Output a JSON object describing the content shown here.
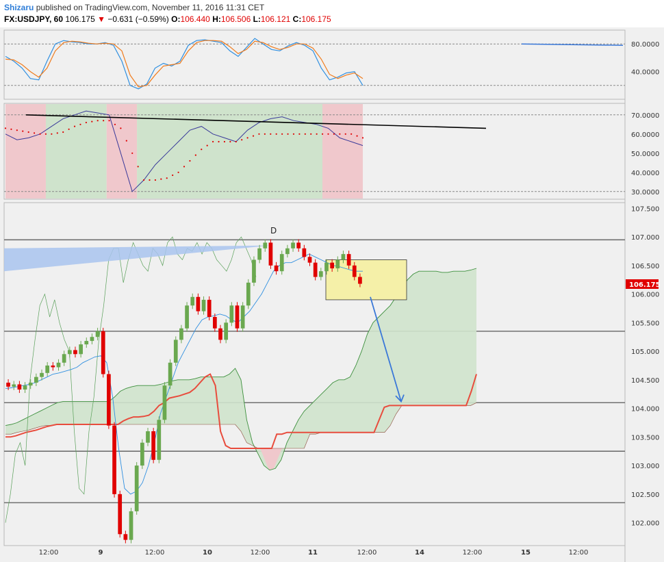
{
  "header": {
    "author": "Shizaru",
    "published": "published on TradingView.com, November 11, 2016 11:31 CET",
    "symbol": "FX:USDJPY, 60",
    "last": "106.175",
    "change": "−0.631 (−0.59%)",
    "o_label": "O:",
    "o": "106.440",
    "h_label": "H:",
    "h": "106.506",
    "l_label": "L:",
    "l": "106.121",
    "c_label": "C:",
    "c": "106.175"
  },
  "colors": {
    "up": "#6aa84f",
    "down": "#e00000",
    "kijun": "#e84c3d",
    "tenkan": "#2f8fe0",
    "stoch_k": "#2f8fe0",
    "stoch_d": "#f07a1a",
    "rsi": "#3a3a9a",
    "psar": "#e00000",
    "cloud": "#cfe3cc",
    "cloud_red": "#f0c8cc",
    "box": "#f5f0a8",
    "arrow": "#3a78d8",
    "price_tag": "#e00000"
  },
  "chart_data": [
    {
      "name": "Stochastic",
      "type": "line",
      "yticks": [
        "80.0000",
        "40.0000"
      ],
      "ylim": [
        0,
        100
      ],
      "guides": [
        80,
        20
      ],
      "series": [
        {
          "key": "k",
          "values": [
            62,
            55,
            45,
            30,
            28,
            55,
            80,
            85,
            83,
            82,
            80,
            80,
            82,
            78,
            55,
            20,
            15,
            22,
            45,
            52,
            48,
            55,
            78,
            85,
            86,
            84,
            82,
            70,
            62,
            75,
            88,
            80,
            72,
            70,
            77,
            82,
            78,
            70,
            45,
            28,
            32,
            38,
            40,
            20
          ]
        },
        {
          "key": "d",
          "values": [
            58,
            57,
            50,
            40,
            32,
            45,
            70,
            82,
            84,
            83,
            81,
            80,
            81,
            80,
            70,
            35,
            18,
            20,
            35,
            48,
            50,
            52,
            70,
            82,
            85,
            85,
            84,
            76,
            66,
            72,
            84,
            82,
            76,
            72,
            75,
            80,
            80,
            74,
            58,
            36,
            30,
            35,
            38,
            30
          ]
        }
      ],
      "trendline": [
        [
          0.0,
          80
        ],
        [
          1.0,
          78
        ]
      ]
    },
    {
      "name": "RSI with Parabolic SAR",
      "type": "line",
      "yticks": [
        "70.0000",
        "60.0000",
        "50.0000",
        "40.0000",
        "30.0000"
      ],
      "ylim": [
        26,
        76
      ],
      "guides": [
        70,
        30
      ],
      "rsi": [
        60,
        57,
        58,
        60,
        64,
        68,
        70,
        72,
        71,
        70,
        50,
        30,
        36,
        44,
        50,
        56,
        62,
        64,
        60,
        58,
        56,
        62,
        66,
        68,
        69,
        67,
        66,
        65,
        63,
        58,
        56,
        54
      ],
      "psar": [
        63,
        62,
        61,
        60,
        60,
        61,
        64,
        66,
        67,
        67,
        63,
        50,
        36,
        36,
        37,
        40,
        46,
        52,
        56,
        56,
        56,
        58,
        60,
        60,
        60,
        60,
        60,
        60,
        60,
        60,
        60,
        58
      ],
      "zones": [
        {
          "from": 0.0,
          "to": 0.113,
          "color": "red"
        },
        {
          "from": 0.113,
          "to": 0.283,
          "color": "green"
        },
        {
          "from": 0.283,
          "to": 0.368,
          "color": "red"
        },
        {
          "from": 0.368,
          "to": 0.887,
          "color": "green"
        },
        {
          "from": 0.887,
          "to": 1.0,
          "color": "red"
        }
      ],
      "trendline": [
        [
          70,
          38
        ],
        [
          63,
          48
        ]
      ]
    },
    {
      "name": "FX:USDJPY 60",
      "type": "candlestick",
      "ylim": [
        101.6,
        107.6
      ],
      "yticks": [
        "107.500",
        "107.000",
        "106.500",
        "106.000",
        "105.500",
        "105.000",
        "104.500",
        "104.000",
        "103.500",
        "103.000",
        "102.500",
        "102.000"
      ],
      "current_price": "106.175",
      "horizontal_levels": [
        106.95,
        105.35,
        104.1,
        103.25,
        102.35
      ],
      "xticks": [
        "12:00",
        "9",
        "12:00",
        "10",
        "12:00",
        "11",
        "12:00",
        "14",
        "12:00",
        "15",
        "12:00"
      ],
      "annotations": [
        "D"
      ],
      "candles": [
        [
          104.45,
          104.38
        ],
        [
          104.38,
          104.42
        ],
        [
          104.42,
          104.33
        ],
        [
          104.33,
          104.4
        ],
        [
          104.4,
          104.45
        ],
        [
          104.45,
          104.55
        ],
        [
          104.55,
          104.62
        ],
        [
          104.62,
          104.75
        ],
        [
          104.75,
          104.72
        ],
        [
          104.72,
          104.8
        ],
        [
          104.8,
          104.95
        ],
        [
          104.95,
          105.02
        ],
        [
          105.02,
          104.95
        ],
        [
          104.95,
          105.12
        ],
        [
          105.12,
          105.18
        ],
        [
          105.18,
          105.25
        ],
        [
          105.25,
          105.35
        ],
        [
          105.35,
          104.6
        ],
        [
          104.6,
          103.7
        ],
        [
          103.7,
          102.5
        ],
        [
          102.5,
          101.8
        ],
        [
          101.8,
          101.7
        ],
        [
          101.7,
          102.2
        ],
        [
          102.2,
          103.0
        ],
        [
          103.0,
          103.4
        ],
        [
          103.4,
          103.6
        ],
        [
          103.6,
          103.1
        ],
        [
          103.1,
          103.8
        ],
        [
          103.8,
          104.4
        ],
        [
          104.4,
          104.8
        ],
        [
          104.8,
          105.2
        ],
        [
          105.2,
          105.4
        ],
        [
          105.4,
          105.8
        ],
        [
          105.8,
          105.95
        ],
        [
          105.95,
          105.7
        ],
        [
          105.7,
          105.9
        ],
        [
          105.9,
          105.6
        ],
        [
          105.6,
          105.4
        ],
        [
          105.4,
          105.2
        ],
        [
          105.2,
          105.5
        ],
        [
          105.5,
          105.8
        ],
        [
          105.8,
          105.4
        ],
        [
          105.4,
          105.8
        ],
        [
          105.8,
          106.2
        ],
        [
          106.2,
          106.6
        ],
        [
          106.6,
          106.8
        ],
        [
          106.8,
          106.9
        ],
        [
          106.9,
          106.5
        ],
        [
          106.5,
          106.4
        ],
        [
          106.4,
          106.7
        ],
        [
          106.7,
          106.8
        ],
        [
          106.8,
          106.9
        ],
        [
          106.9,
          106.8
        ],
        [
          106.8,
          106.65
        ],
        [
          106.65,
          106.55
        ],
        [
          106.55,
          106.3
        ],
        [
          106.3,
          106.4
        ],
        [
          106.4,
          106.55
        ],
        [
          106.55,
          106.45
        ],
        [
          106.45,
          106.6
        ],
        [
          106.6,
          106.7
        ],
        [
          106.7,
          106.5
        ],
        [
          106.5,
          106.3
        ],
        [
          106.3,
          106.18
        ]
      ],
      "tenkan": [
        104.35,
        104.36,
        104.38,
        104.4,
        104.42,
        104.45,
        104.5,
        104.55,
        104.6,
        104.62,
        104.65,
        104.68,
        104.72,
        104.8,
        104.85,
        104.9,
        104.92,
        104.8,
        104.2,
        103.3,
        102.6,
        102.5,
        102.55,
        102.7,
        103.0,
        103.4,
        103.9,
        104.2,
        104.5,
        104.8,
        105.0,
        105.2,
        105.4,
        105.55,
        105.6,
        105.62,
        105.65,
        105.62,
        105.55,
        105.5,
        105.6,
        105.7,
        105.85,
        106.0,
        106.2,
        106.4,
        106.5,
        106.55,
        106.55,
        106.6,
        106.65,
        106.7,
        106.65,
        106.6,
        106.55,
        106.5,
        106.48,
        106.45,
        106.42,
        106.4,
        106.4
      ],
      "kijun": [
        103.5,
        103.5,
        103.52,
        103.55,
        103.58,
        103.6,
        103.62,
        103.65,
        103.68,
        103.7,
        103.72,
        103.72,
        103.72,
        103.72,
        103.72,
        103.72,
        103.72,
        103.72,
        103.72,
        103.72,
        103.72,
        103.72,
        103.72,
        103.78,
        103.82,
        103.85,
        103.85,
        103.86,
        103.88,
        103.95,
        104.05,
        104.1,
        104.18,
        104.2,
        104.22,
        104.25,
        104.28,
        104.35,
        104.45,
        104.55,
        104.6,
        104.4,
        103.6,
        103.35,
        103.3,
        103.3,
        103.3,
        103.3,
        103.3,
        103.3,
        103.3,
        103.3,
        103.3,
        103.55,
        103.55,
        103.58,
        103.58,
        103.58,
        103.58,
        103.58,
        103.58,
        103.58,
        103.58,
        103.58,
        103.58,
        103.58,
        103.58,
        103.58,
        103.58,
        103.58,
        103.58,
        103.58,
        103.58,
        103.8,
        104.02,
        104.05,
        104.05,
        104.05,
        104.05,
        104.05,
        104.05,
        104.05,
        104.05,
        104.05,
        104.05,
        104.05,
        104.05,
        104.05,
        104.05,
        104.05,
        104.05,
        104.3,
        104.6
      ],
      "senkou_a": [
        103.7,
        103.72,
        103.75,
        103.8,
        103.85,
        103.9,
        103.95,
        104.0,
        104.05,
        104.1,
        104.12,
        104.12,
        104.12,
        104.12,
        104.12,
        104.12,
        104.12,
        104.12,
        104.12,
        104.2,
        104.3,
        104.35,
        104.38,
        104.4,
        104.4,
        104.4,
        104.4,
        104.42,
        104.45,
        104.48,
        104.5,
        104.5,
        104.5,
        104.52,
        104.55,
        104.55,
        104.55,
        104.55,
        104.55,
        104.6,
        104.7,
        104.5,
        103.8,
        103.4,
        103.2,
        103.0,
        102.92,
        102.95,
        103.1,
        103.4,
        103.6,
        103.8,
        103.95,
        104.05,
        104.15,
        104.25,
        104.35,
        104.45,
        104.5,
        104.5,
        104.55,
        104.75,
        105.0,
        105.3,
        105.5,
        105.6,
        105.7,
        105.8,
        105.95,
        106.1,
        106.25,
        106.35,
        106.4,
        106.4,
        106.4,
        106.4,
        106.38,
        106.38,
        106.4,
        106.4,
        106.4,
        106.42,
        106.45
      ],
      "senkou_b": [
        103.55,
        103.55,
        103.58,
        103.6,
        103.62,
        103.65,
        103.68,
        103.7,
        103.7,
        103.72,
        103.72,
        103.72,
        103.72,
        103.72,
        103.72,
        103.72,
        103.72,
        103.72,
        103.72,
        103.72,
        103.72,
        103.72,
        103.72,
        103.72,
        103.72,
        103.72,
        103.72,
        103.72,
        103.72,
        103.72,
        103.72,
        103.72,
        103.72,
        103.72,
        103.72,
        103.72,
        103.72,
        103.72,
        103.72,
        103.72,
        103.72,
        103.6,
        103.4,
        103.35,
        103.3,
        103.3,
        103.3,
        103.3,
        103.3,
        103.3,
        103.3,
        103.3,
        103.3,
        103.55,
        103.55,
        103.58,
        103.58,
        103.58,
        103.58,
        103.58,
        103.58,
        103.58,
        103.58,
        103.58,
        103.58,
        103.58,
        103.58,
        103.7,
        103.9,
        104.05,
        104.05,
        104.05,
        104.05,
        104.05,
        104.05,
        104.05,
        104.05,
        104.05,
        104.05,
        104.05,
        104.05,
        104.05,
        104.1
      ],
      "chikou": [
        102.0,
        102.5,
        103.2,
        103.4,
        103.0,
        104.5,
        105.2,
        105.8,
        106.0,
        105.6,
        105.9,
        105.5,
        105.2,
        105.0,
        103.6,
        102.6,
        102.5,
        103.6,
        104.2,
        105.2,
        105.8,
        106.6,
        106.8,
        106.8,
        106.2,
        106.6,
        106.9,
        106.7,
        106.5,
        106.4,
        106.8,
        106.7,
        106.5,
        106.9,
        107.0,
        106.7,
        106.6,
        106.8,
        106.75,
        106.9,
        106.7,
        106.9,
        106.8,
        106.6,
        106.5,
        106.4,
        106.6,
        106.9,
        107.0,
        106.8,
        106.6,
        106.3
      ]
    }
  ]
}
